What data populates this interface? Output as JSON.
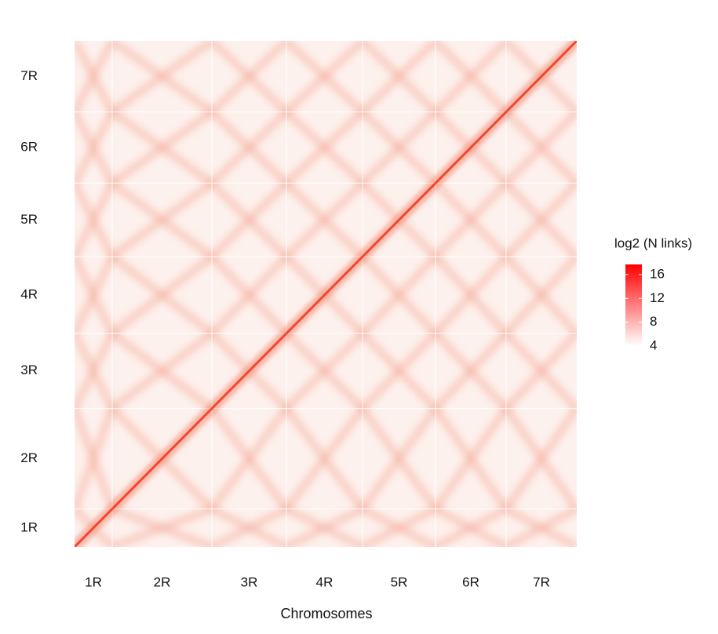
{
  "chart_data": {
    "type": "heatmap",
    "x_label": "Chromosomes",
    "categories": [
      "1R",
      "2R",
      "3R",
      "4R",
      "5R",
      "6R",
      "7R"
    ],
    "y_categories": [
      "1R",
      "2R",
      "3R",
      "4R",
      "5R",
      "6R",
      "7R"
    ],
    "colorbar": {
      "title": "log2 (N links)",
      "lim": [
        4,
        17.7
      ],
      "ticks": [
        4,
        8,
        12,
        16
      ],
      "colors": [
        "#ffffff",
        "#ff0000"
      ]
    }
  }
}
